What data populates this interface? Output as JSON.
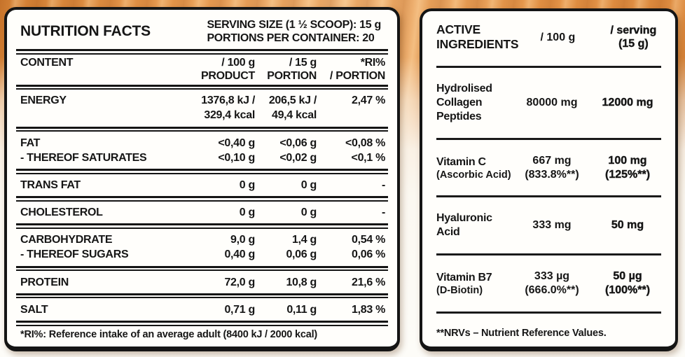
{
  "colors": {
    "background_orange": "#e09a55",
    "background_fade": "#fbf8f1",
    "panel_background": "#fffefb",
    "text": "#161616"
  },
  "nutrition_panel": {
    "title": "NUTRITION FACTS",
    "serving_size_line": "SERVING SIZE (1 ½ SCOOP): 15 g",
    "portions_line": "PORTIONS PER CONTAINER: 20",
    "columns": {
      "content": "CONTENT",
      "per100_l1": "/ 100 g",
      "per100_l2": "PRODUCT",
      "per15_l1": "/ 15 g",
      "per15_l2": "PORTION",
      "ri_l1": "*RI%",
      "ri_l2": "/ PORTION"
    },
    "sections": [
      {
        "lines": [
          {
            "name": "ENERGY",
            "v100": "1376,8 kJ /",
            "v15": "206,5 kJ /",
            "ri": "2,47 %"
          },
          {
            "name": "",
            "v100": "329,4 kcal",
            "v15": "49,4 kcal",
            "ri": ""
          }
        ]
      },
      {
        "lines": [
          {
            "name": "FAT",
            "v100": "<0,40 g",
            "v15": "<0,06 g",
            "ri": "<0,08 %"
          },
          {
            "name": "- THEREOF SATURATES",
            "v100": "<0,10 g",
            "v15": "<0,02 g",
            "ri": "<0,1 %"
          }
        ]
      },
      {
        "lines": [
          {
            "name": "TRANS FAT",
            "v100": "0 g",
            "v15": "0 g",
            "ri": "-"
          }
        ]
      },
      {
        "lines": [
          {
            "name": "CHOLESTEROL",
            "v100": "0 g",
            "v15": "0 g",
            "ri": "-"
          }
        ]
      },
      {
        "lines": [
          {
            "name": "CARBOHYDRATE",
            "v100": "9,0 g",
            "v15": "1,4 g",
            "ri": "0,54 %"
          },
          {
            "name": "- THEREOF SUGARS",
            "v100": "0,40 g",
            "v15": "0,06 g",
            "ri": "0,06 %"
          }
        ]
      },
      {
        "lines": [
          {
            "name": "PROTEIN",
            "v100": "72,0 g",
            "v15": "10,8 g",
            "ri": "21,6 %"
          }
        ]
      },
      {
        "lines": [
          {
            "name": "SALT",
            "v100": "0,71 g",
            "v15": "0,11 g",
            "ri": "1,83 %"
          }
        ]
      }
    ],
    "footnote": "*RI%: Reference intake of an average adult (8400 kJ / 2000 kcal)"
  },
  "ingredients_panel": {
    "title_l1": "ACTIVE",
    "title_l2": "INGREDIENTS",
    "col_per100": "/ 100 g",
    "col_serving_l1": "/ serving",
    "col_serving_l2": "(15 g)",
    "rows": [
      {
        "name": "Hydrolised Collagen Peptides",
        "v100": "80000 mg",
        "serving": "12000 mg"
      },
      {
        "name": "Vitamin C",
        "sub": "(Ascorbic Acid)",
        "v100": "667 mg",
        "v100_sub": "(833.8%**)",
        "serving": "100 mg",
        "serving_sub": "(125%**)"
      },
      {
        "name": "Hyaluronic Acid",
        "v100": "333 mg",
        "serving": "50 mg"
      },
      {
        "name": "Vitamin B7",
        "sub": "(D-Biotin)",
        "v100": "333 µg",
        "v100_sub": "(666.0%**)",
        "serving": "50 µg",
        "serving_sub": "(100%**)"
      }
    ],
    "footnote": "**NRVs – Nutrient Reference Values."
  }
}
